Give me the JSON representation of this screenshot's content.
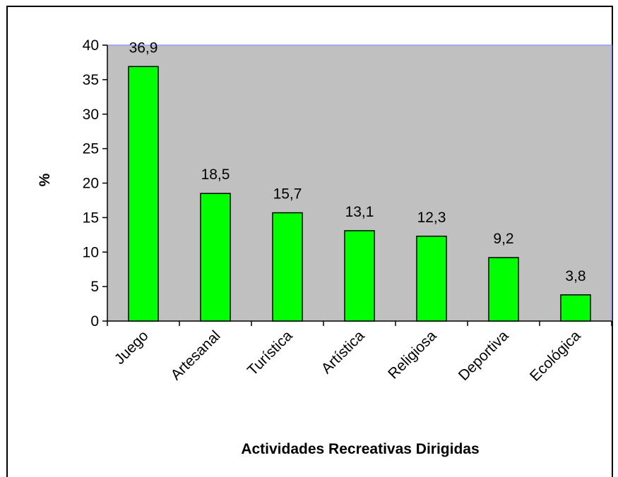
{
  "chart_data": {
    "type": "bar",
    "categories": [
      "Juego",
      "Artesanal",
      "Turística",
      "Artística",
      "Religiosa",
      "Deportiva",
      "Ecológica"
    ],
    "values": [
      36.9,
      18.5,
      15.7,
      13.1,
      12.3,
      9.2,
      3.8
    ],
    "value_labels": [
      "36,9",
      "18,5",
      "15,7",
      "13,1",
      "12,3",
      "9,2",
      "3,8"
    ],
    "color": "#00ff00",
    "ylim": [
      0,
      40
    ],
    "yticks": [
      0,
      5,
      10,
      15,
      20,
      25,
      30,
      35,
      40
    ],
    "ylabel": "%",
    "xlabel": "Actividades Recreativas Dirigidas"
  }
}
